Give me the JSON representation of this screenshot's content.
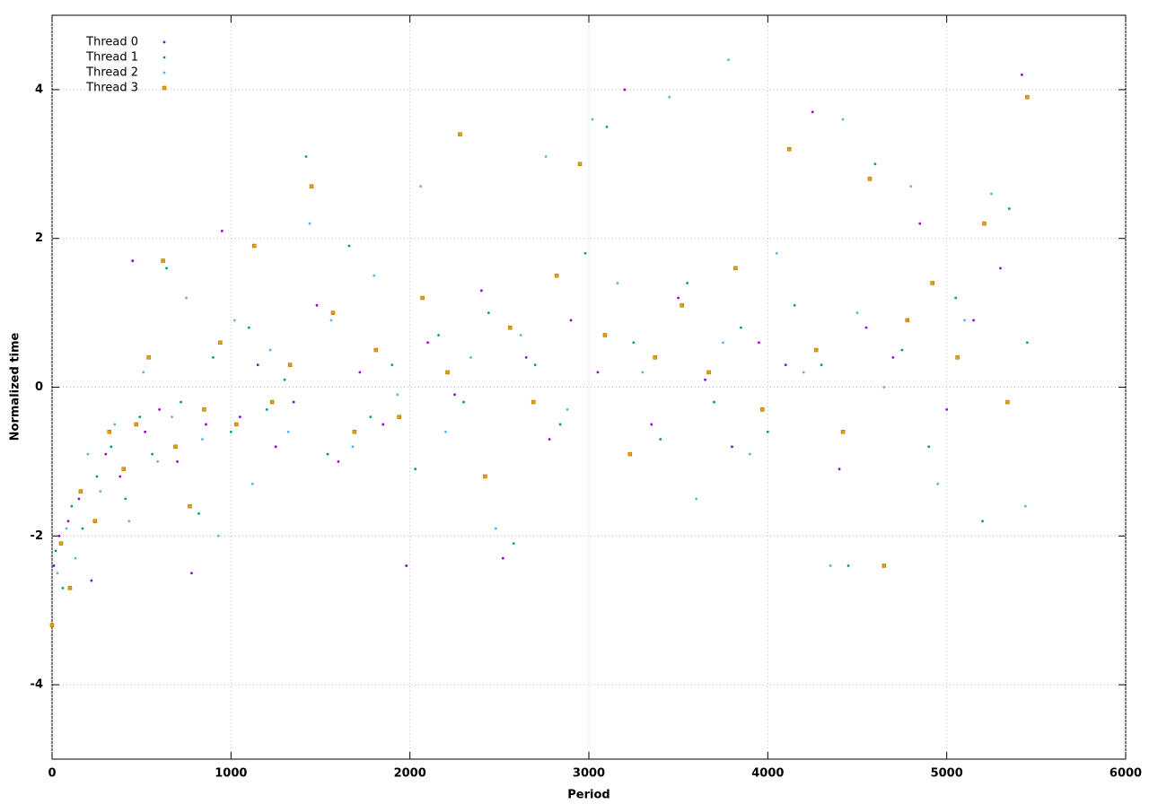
{
  "chart_data": {
    "type": "scatter",
    "xlabel": "Period",
    "ylabel": "Normalized time",
    "xlim": [
      0,
      6000
    ],
    "ylim": [
      -5,
      5
    ],
    "xticks": [
      0,
      1000,
      2000,
      3000,
      4000,
      5000,
      6000
    ],
    "yticks": [
      -4,
      -2,
      0,
      2,
      4
    ],
    "grid": true,
    "legend": "upper-left",
    "series": [
      {
        "name": "Thread 0",
        "color": "#9400d3",
        "marker": "dot",
        "x": [
          10,
          40,
          90,
          150,
          220,
          300,
          380,
          450,
          520,
          600,
          700,
          780,
          860,
          950,
          1050,
          1150,
          1250,
          1350,
          1480,
          1600,
          1720,
          1850,
          1980,
          2100,
          2250,
          2400,
          2520,
          2650,
          2780,
          2900,
          3050,
          3200,
          3350,
          3500,
          3650,
          3800,
          3950,
          4100,
          4250,
          4400,
          4550,
          4700,
          4850,
          5000,
          5150,
          5300,
          5420
        ],
        "values": [
          -2.4,
          -2.0,
          -1.8,
          -1.5,
          -2.6,
          -0.9,
          -1.2,
          1.7,
          -0.6,
          -0.3,
          -1.0,
          -2.5,
          -0.5,
          2.1,
          -0.4,
          0.3,
          -0.8,
          -0.2,
          1.1,
          -1.0,
          0.2,
          -0.5,
          -2.4,
          0.6,
          -0.1,
          1.3,
          -2.3,
          0.4,
          -0.7,
          0.9,
          0.2,
          4.0,
          -0.5,
          1.2,
          0.1,
          -0.8,
          0.6,
          0.3,
          3.7,
          -1.1,
          0.8,
          0.4,
          2.2,
          -0.3,
          0.9,
          1.6,
          4.2
        ]
      },
      {
        "name": "Thread 1",
        "color": "#009e73",
        "marker": "dot",
        "x": [
          20,
          60,
          110,
          170,
          250,
          330,
          410,
          490,
          560,
          640,
          720,
          820,
          900,
          1000,
          1100,
          1200,
          1300,
          1420,
          1540,
          1660,
          1780,
          1900,
          2030,
          2160,
          2300,
          2440,
          2580,
          2700,
          2840,
          2980,
          3100,
          3250,
          3400,
          3550,
          3700,
          3850,
          4000,
          4150,
          4300,
          4450,
          4600,
          4750,
          4900,
          5050,
          5200,
          5350,
          5450
        ],
        "values": [
          -2.2,
          -2.7,
          -1.6,
          -1.9,
          -1.2,
          -0.8,
          -1.5,
          -0.4,
          -0.9,
          1.6,
          -0.2,
          -1.7,
          0.4,
          -0.6,
          0.8,
          -0.3,
          0.1,
          3.1,
          -0.9,
          1.9,
          -0.4,
          0.3,
          -1.1,
          0.7,
          -0.2,
          1.0,
          -2.1,
          0.3,
          -0.5,
          1.8,
          3.5,
          0.6,
          -0.7,
          1.4,
          -0.2,
          0.8,
          -0.6,
          1.1,
          0.3,
          -2.4,
          3.0,
          0.5,
          -0.8,
          1.2,
          -1.8,
          2.4,
          0.6
        ]
      },
      {
        "name": "Thread 2",
        "color": "#56b4e9",
        "marker": "dot",
        "x": [
          30,
          80,
          130,
          200,
          270,
          350,
          430,
          510,
          590,
          670,
          750,
          840,
          930,
          1020,
          1120,
          1220,
          1320,
          1440,
          1560,
          1680,
          1800,
          1930,
          2060,
          2200,
          2340,
          2480,
          2620,
          2760,
          2880,
          3020,
          3160,
          3300,
          3450,
          3600,
          3750,
          3780,
          3900,
          4050,
          4200,
          4350,
          4420,
          4500,
          4650,
          4800,
          4950,
          5100,
          5250,
          5440
        ],
        "values": [
          -2.5,
          -1.9,
          -2.3,
          -0.9,
          -1.4,
          -0.5,
          -1.8,
          0.2,
          -1.0,
          -0.4,
          1.2,
          -0.7,
          -2.0,
          0.9,
          -1.3,
          0.5,
          -0.6,
          2.2,
          0.9,
          -0.8,
          1.5,
          -0.1,
          2.7,
          -0.6,
          0.4,
          -1.9,
          0.7,
          3.1,
          -0.3,
          3.6,
          1.4,
          0.2,
          3.9,
          -1.5,
          0.6,
          4.4,
          -0.9,
          1.8,
          0.2,
          -2.4,
          3.6,
          1.0,
          0.0,
          2.7,
          -1.3,
          0.9,
          2.6,
          -1.6
        ]
      },
      {
        "name": "Thread 3",
        "color": "#e69f00",
        "marker": "square",
        "x": [
          0,
          50,
          100,
          160,
          240,
          320,
          400,
          470,
          540,
          620,
          690,
          770,
          850,
          940,
          1030,
          1130,
          1230,
          1330,
          1450,
          1570,
          1690,
          1810,
          1940,
          2070,
          2210,
          2280,
          2420,
          2560,
          2690,
          2820,
          2950,
          3090,
          3230,
          3370,
          3520,
          3670,
          3820,
          3970,
          4120,
          4270,
          4420,
          4570,
          4650,
          4780,
          4920,
          5060,
          5210,
          5340,
          5450
        ],
        "values": [
          -3.2,
          -2.1,
          -2.7,
          -1.4,
          -1.8,
          -0.6,
          -1.1,
          -0.5,
          0.4,
          1.7,
          -0.8,
          -1.6,
          -0.3,
          0.6,
          -0.5,
          1.9,
          -0.2,
          0.3,
          2.7,
          1.0,
          -0.6,
          0.5,
          -0.4,
          1.2,
          0.2,
          3.4,
          -1.2,
          0.8,
          -0.2,
          1.5,
          3.0,
          0.7,
          -0.9,
          0.4,
          1.1,
          0.2,
          1.6,
          -0.3,
          3.2,
          0.5,
          -0.6,
          2.8,
          -2.4,
          0.9,
          1.4,
          0.4,
          2.2,
          -0.2,
          3.9
        ]
      }
    ]
  }
}
